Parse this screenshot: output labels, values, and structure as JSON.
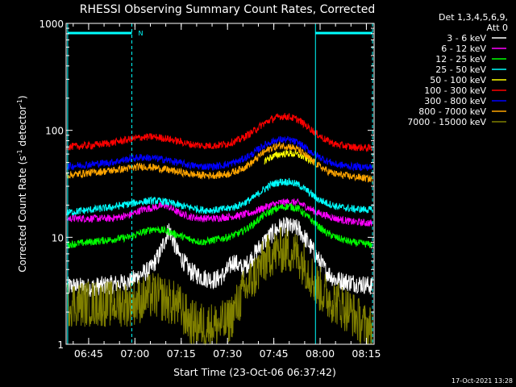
{
  "chart_data": {
    "type": "line",
    "title": "RHESSI Observing Summary Count Rates, Corrected",
    "xlabel": "Start Time (23-Oct-06 06:37:42)",
    "ylabel_main": "Corrected Count Rate (s",
    "ylabel_sup1": "-1",
    "ylabel_mid": " detector",
    "ylabel_sup2": "-1",
    "ylabel_end": ")",
    "y_scale": "log",
    "ylim": [
      1,
      1000
    ],
    "y_ticks": [
      {
        "value": 1,
        "label": "1"
      },
      {
        "value": 10,
        "label": "10"
      },
      {
        "value": 100,
        "label": "100"
      },
      {
        "value": 1000,
        "label": "1000"
      }
    ],
    "xlim_minutes": [
      397.7,
      497.5
    ],
    "x_ticks": [
      {
        "value": 405,
        "label": "06:45"
      },
      {
        "value": 420,
        "label": "07:00"
      },
      {
        "value": 435,
        "label": "07:15"
      },
      {
        "value": 450,
        "label": "07:30"
      },
      {
        "value": 465,
        "label": "07:45"
      },
      {
        "value": 480,
        "label": "08:00"
      },
      {
        "value": 495,
        "label": "08:15"
      }
    ],
    "x_minor_step_minutes": 5,
    "legend": {
      "placement": "right",
      "header": [
        "Det 1,3,4,5,6,9,",
        "Att 0"
      ]
    },
    "series": [
      {
        "name": "3 - 6 keV",
        "color": "#ffffff",
        "points": [
          [
            398,
            3.5
          ],
          [
            405,
            3.4
          ],
          [
            412,
            3.6
          ],
          [
            418,
            3.8
          ],
          [
            422,
            4.5
          ],
          [
            425,
            5
          ],
          [
            428,
            7
          ],
          [
            431,
            12
          ],
          [
            434,
            7
          ],
          [
            438,
            4.8
          ],
          [
            442,
            4.2
          ],
          [
            446,
            4
          ],
          [
            449,
            4.5
          ],
          [
            452,
            6
          ],
          [
            455,
            5
          ],
          [
            458,
            6.5
          ],
          [
            461,
            8.5
          ],
          [
            464,
            10.5
          ],
          [
            467,
            12.5
          ],
          [
            470,
            12.5
          ],
          [
            473,
            12
          ],
          [
            476,
            9
          ],
          [
            479,
            6.5
          ],
          [
            482,
            4.8
          ],
          [
            485,
            4
          ],
          [
            490,
            3.8
          ],
          [
            497,
            3.5
          ]
        ]
      },
      {
        "name": "6 - 12 keV",
        "color": "#ff00ff",
        "points": [
          [
            398,
            15
          ],
          [
            405,
            15
          ],
          [
            412,
            15
          ],
          [
            418,
            16
          ],
          [
            422,
            18
          ],
          [
            426,
            19
          ],
          [
            430,
            20
          ],
          [
            434,
            17
          ],
          [
            438,
            15.5
          ],
          [
            442,
            15
          ],
          [
            446,
            15
          ],
          [
            450,
            15.5
          ],
          [
            454,
            16
          ],
          [
            458,
            17
          ],
          [
            461,
            18.5
          ],
          [
            464,
            20
          ],
          [
            467,
            21
          ],
          [
            470,
            21.5
          ],
          [
            473,
            21
          ],
          [
            476,
            19
          ],
          [
            479,
            17
          ],
          [
            482,
            16
          ],
          [
            485,
            15
          ],
          [
            490,
            14
          ],
          [
            497,
            13.5
          ]
        ]
      },
      {
        "name": "12 - 25 keV",
        "color": "#00ff00",
        "points": [
          [
            398,
            8.5
          ],
          [
            405,
            9
          ],
          [
            412,
            9.5
          ],
          [
            418,
            10
          ],
          [
            422,
            11
          ],
          [
            426,
            12
          ],
          [
            430,
            11.5
          ],
          [
            434,
            10.5
          ],
          [
            438,
            9.5
          ],
          [
            442,
            9
          ],
          [
            446,
            9.5
          ],
          [
            450,
            10
          ],
          [
            454,
            11
          ],
          [
            458,
            13
          ],
          [
            461,
            15.5
          ],
          [
            464,
            17.5
          ],
          [
            467,
            19
          ],
          [
            470,
            19.5
          ],
          [
            473,
            18.5
          ],
          [
            476,
            15.5
          ],
          [
            479,
            13
          ],
          [
            482,
            11
          ],
          [
            485,
            10
          ],
          [
            490,
            9
          ],
          [
            497,
            8.5
          ]
        ]
      },
      {
        "name": "25 - 50 keV",
        "color": "#00ffff",
        "points": [
          [
            398,
            17
          ],
          [
            405,
            18
          ],
          [
            412,
            19
          ],
          [
            418,
            20.5
          ],
          [
            422,
            21.5
          ],
          [
            426,
            22
          ],
          [
            430,
            21.5
          ],
          [
            434,
            20
          ],
          [
            438,
            19
          ],
          [
            442,
            18
          ],
          [
            446,
            18
          ],
          [
            450,
            18.5
          ],
          [
            454,
            20
          ],
          [
            458,
            23
          ],
          [
            461,
            27
          ],
          [
            464,
            31
          ],
          [
            467,
            33
          ],
          [
            470,
            33
          ],
          [
            473,
            31
          ],
          [
            476,
            27
          ],
          [
            479,
            23
          ],
          [
            482,
            21
          ],
          [
            485,
            19.5
          ],
          [
            490,
            18.5
          ],
          [
            497,
            18
          ]
        ]
      },
      {
        "name": "50 - 100 keV",
        "color": "#ffff00",
        "points": [
          [
            462,
            52
          ],
          [
            464,
            56
          ],
          [
            467,
            60
          ],
          [
            470,
            61
          ],
          [
            473,
            59
          ],
          [
            476,
            54
          ],
          [
            478,
            50
          ]
        ]
      },
      {
        "name": "100 - 300 keV",
        "color": "#ff0000",
        "points": [
          [
            398,
            70
          ],
          [
            405,
            72
          ],
          [
            412,
            76
          ],
          [
            418,
            82
          ],
          [
            422,
            86
          ],
          [
            426,
            87
          ],
          [
            430,
            84
          ],
          [
            434,
            79
          ],
          [
            438,
            74
          ],
          [
            442,
            72
          ],
          [
            446,
            72
          ],
          [
            450,
            75
          ],
          [
            454,
            82
          ],
          [
            458,
            96
          ],
          [
            461,
            112
          ],
          [
            464,
            126
          ],
          [
            467,
            135
          ],
          [
            470,
            134
          ],
          [
            473,
            125
          ],
          [
            476,
            108
          ],
          [
            479,
            92
          ],
          [
            482,
            81
          ],
          [
            485,
            74
          ],
          [
            490,
            70
          ],
          [
            497,
            68
          ]
        ]
      },
      {
        "name": "300 - 800 keV",
        "color": "#0000ff",
        "points": [
          [
            398,
            46
          ],
          [
            405,
            48
          ],
          [
            412,
            50
          ],
          [
            418,
            54
          ],
          [
            422,
            56
          ],
          [
            426,
            55
          ],
          [
            430,
            53
          ],
          [
            434,
            50
          ],
          [
            438,
            47
          ],
          [
            442,
            46
          ],
          [
            446,
            46
          ],
          [
            450,
            48
          ],
          [
            454,
            52
          ],
          [
            458,
            60
          ],
          [
            461,
            70
          ],
          [
            464,
            78
          ],
          [
            467,
            82
          ],
          [
            470,
            81
          ],
          [
            473,
            76
          ],
          [
            476,
            66
          ],
          [
            479,
            58
          ],
          [
            482,
            52
          ],
          [
            485,
            48
          ],
          [
            490,
            46
          ],
          [
            497,
            45
          ]
        ]
      },
      {
        "name": "800 - 7000 keV",
        "color": "#ffa500",
        "points": [
          [
            398,
            38
          ],
          [
            405,
            40
          ],
          [
            412,
            42
          ],
          [
            418,
            44
          ],
          [
            422,
            46
          ],
          [
            426,
            45
          ],
          [
            430,
            43
          ],
          [
            434,
            41
          ],
          [
            438,
            39
          ],
          [
            442,
            38
          ],
          [
            446,
            38
          ],
          [
            450,
            39
          ],
          [
            454,
            43
          ],
          [
            458,
            50
          ],
          [
            461,
            60
          ],
          [
            464,
            68
          ],
          [
            467,
            72
          ],
          [
            470,
            71
          ],
          [
            473,
            66
          ],
          [
            476,
            56
          ],
          [
            479,
            48
          ],
          [
            482,
            42
          ],
          [
            485,
            39
          ],
          [
            490,
            37
          ],
          [
            497,
            35
          ]
        ]
      },
      {
        "name": "7000 - 15000 keV",
        "color": "#808000",
        "points": [
          [
            398,
            2.4
          ],
          [
            405,
            2.4
          ],
          [
            412,
            2.4
          ],
          [
            418,
            2.4
          ],
          [
            422,
            2.6
          ],
          [
            426,
            2.9
          ],
          [
            430,
            2.6
          ],
          [
            434,
            2.3
          ],
          [
            438,
            1.6
          ],
          [
            442,
            1.5
          ],
          [
            446,
            1.5
          ],
          [
            450,
            1.6
          ],
          [
            452,
            2.0
          ],
          [
            455,
            3.0
          ],
          [
            458,
            4.0
          ],
          [
            461,
            5.5
          ],
          [
            464,
            7
          ],
          [
            467,
            7.5
          ],
          [
            470,
            7.5
          ],
          [
            473,
            6.8
          ],
          [
            476,
            5
          ],
          [
            479,
            3.5
          ],
          [
            482,
            2.8
          ],
          [
            486,
            2.4
          ],
          [
            490,
            2.0
          ],
          [
            494,
            1.5
          ],
          [
            497,
            1.4
          ]
        ]
      }
    ],
    "vertical_markers": [
      {
        "x": 398.2,
        "style": "solid"
      },
      {
        "x": 419.0,
        "style": "dashed"
      },
      {
        "x": 478.5,
        "style": "solid"
      },
      {
        "x": 497.0,
        "style": "dashed"
      }
    ],
    "top_bars": [
      {
        "x0": 398.2,
        "x1": 419.0,
        "label": "N"
      },
      {
        "x0": 478.5,
        "x1": 497.0,
        "label": ""
      }
    ],
    "marker_color": "#00ffff",
    "footer_date": "17-Oct-2021 13:28"
  }
}
